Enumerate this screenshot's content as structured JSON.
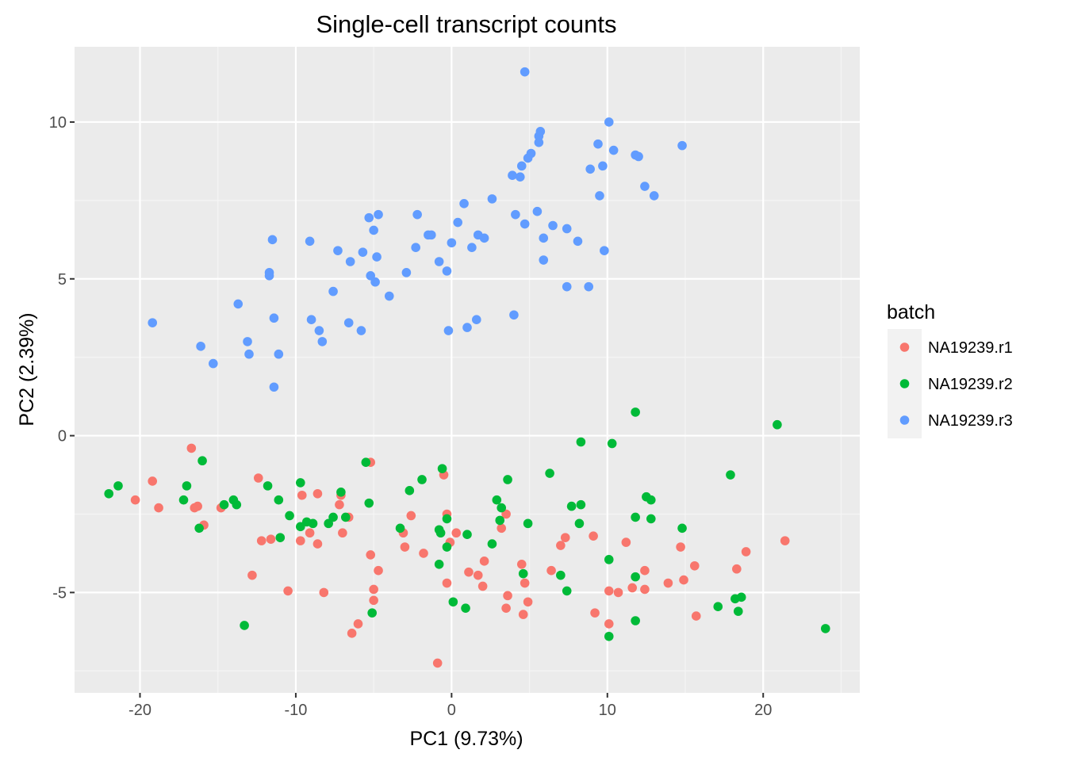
{
  "chart_data": {
    "type": "scatter",
    "title": "Single-cell transcript counts",
    "xlabel": "PC1 (9.73%)",
    "ylabel": "PC2 (2.39%)",
    "xlim": [
      -24.2,
      26.2
    ],
    "ylim": [
      -8.2,
      12.4
    ],
    "xticks": [
      -20,
      -10,
      0,
      10,
      20
    ],
    "xtick_labels": [
      "-20",
      "-10",
      "0",
      "10",
      "20"
    ],
    "yticks": [
      -5,
      0,
      5,
      10
    ],
    "ytick_labels": [
      "-5",
      "0",
      "5",
      "10"
    ],
    "grid": true,
    "background": "#EBEBEB",
    "legend": {
      "title": "batch",
      "position": "right"
    },
    "series": [
      {
        "name": "NA19239.r1",
        "color": "#F8766D",
        "points": [
          [
            -16.7,
            -0.4
          ],
          [
            -5.2,
            -0.85
          ],
          [
            -12.4,
            -1.35
          ],
          [
            -19.2,
            -1.45
          ],
          [
            -20.3,
            -2.05
          ],
          [
            -18.8,
            -2.3
          ],
          [
            -16.5,
            -2.3
          ],
          [
            -16.3,
            -2.25
          ],
          [
            -15.9,
            -2.85
          ],
          [
            -14.8,
            -2.3
          ],
          [
            -9.6,
            -1.9
          ],
          [
            -8.6,
            -1.85
          ],
          [
            -7.1,
            -1.9
          ],
          [
            -7.2,
            -2.2
          ],
          [
            -6.6,
            -2.6
          ],
          [
            -9.1,
            -3.1
          ],
          [
            -12.2,
            -3.35
          ],
          [
            -11.6,
            -3.3
          ],
          [
            -9.7,
            -3.35
          ],
          [
            -8.6,
            -3.45
          ],
          [
            -7.0,
            -3.1
          ],
          [
            -12.8,
            -4.45
          ],
          [
            -5.2,
            -3.8
          ],
          [
            -4.7,
            -4.3
          ],
          [
            -3.1,
            -3.1
          ],
          [
            -2.6,
            -2.55
          ],
          [
            -3.0,
            -3.55
          ],
          [
            -1.8,
            -3.75
          ],
          [
            -0.5,
            -1.25
          ],
          [
            -0.3,
            -2.5
          ],
          [
            -0.1,
            -3.4
          ],
          [
            0.3,
            -3.1
          ],
          [
            -0.3,
            -4.7
          ],
          [
            1.1,
            -4.35
          ],
          [
            1.7,
            -4.45
          ],
          [
            2.1,
            -4.0
          ],
          [
            3.5,
            -2.5
          ],
          [
            3.2,
            -2.95
          ],
          [
            2.0,
            -4.8
          ],
          [
            3.5,
            -5.5
          ],
          [
            3.6,
            -5.1
          ],
          [
            4.5,
            -4.1
          ],
          [
            4.7,
            -4.7
          ],
          [
            4.6,
            -5.7
          ],
          [
            4.9,
            -5.3
          ],
          [
            6.4,
            -4.3
          ],
          [
            7.0,
            -3.5
          ],
          [
            7.3,
            -3.25
          ],
          [
            9.1,
            -3.2
          ],
          [
            11.2,
            -3.4
          ],
          [
            11.6,
            -4.85
          ],
          [
            12.4,
            -4.3
          ],
          [
            12.4,
            -4.9
          ],
          [
            13.9,
            -4.7
          ],
          [
            14.7,
            -3.55
          ],
          [
            14.9,
            -4.6
          ],
          [
            15.6,
            -4.15
          ],
          [
            15.7,
            -5.75
          ],
          [
            18.3,
            -4.25
          ],
          [
            18.9,
            -3.7
          ],
          [
            21.4,
            -3.35
          ],
          [
            9.2,
            -5.65
          ],
          [
            10.1,
            -4.95
          ],
          [
            10.7,
            -5.0
          ],
          [
            10.1,
            -6.0
          ],
          [
            -10.5,
            -4.95
          ],
          [
            -8.2,
            -5.0
          ],
          [
            -5.0,
            -4.9
          ],
          [
            -5.0,
            -5.25
          ],
          [
            -6.0,
            -6.0
          ],
          [
            -6.4,
            -6.3
          ],
          [
            -0.9,
            -7.25
          ]
        ]
      },
      {
        "name": "NA19239.r2",
        "color": "#00BA38",
        "points": [
          [
            -22.0,
            -1.85
          ],
          [
            -21.4,
            -1.6
          ],
          [
            -17.0,
            -1.6
          ],
          [
            -17.2,
            -2.05
          ],
          [
            -16.0,
            -0.8
          ],
          [
            -16.2,
            -2.95
          ],
          [
            -14.6,
            -2.2
          ],
          [
            -14.0,
            -2.05
          ],
          [
            -13.8,
            -2.2
          ],
          [
            -13.3,
            -6.05
          ],
          [
            -11.8,
            -1.6
          ],
          [
            -11.1,
            -2.05
          ],
          [
            -10.4,
            -2.55
          ],
          [
            -11.0,
            -3.25
          ],
          [
            -9.7,
            -1.5
          ],
          [
            -9.7,
            -2.9
          ],
          [
            -9.3,
            -2.75
          ],
          [
            -8.9,
            -2.8
          ],
          [
            -7.9,
            -2.8
          ],
          [
            -7.6,
            -2.6
          ],
          [
            -7.1,
            -1.8
          ],
          [
            -6.8,
            -2.6
          ],
          [
            -5.5,
            -0.85
          ],
          [
            -5.3,
            -2.15
          ],
          [
            -5.1,
            -5.65
          ],
          [
            -3.3,
            -2.95
          ],
          [
            -2.7,
            -1.75
          ],
          [
            -1.9,
            -1.4
          ],
          [
            -0.6,
            -1.05
          ],
          [
            -0.8,
            -3.0
          ],
          [
            -0.7,
            -3.1
          ],
          [
            -0.3,
            -2.65
          ],
          [
            -0.3,
            -3.55
          ],
          [
            -0.8,
            -4.1
          ],
          [
            0.1,
            -5.3
          ],
          [
            0.9,
            -5.5
          ],
          [
            1.0,
            -3.15
          ],
          [
            2.6,
            -3.45
          ],
          [
            2.9,
            -2.05
          ],
          [
            3.1,
            -2.7
          ],
          [
            3.2,
            -2.3
          ],
          [
            3.6,
            -1.4
          ],
          [
            4.6,
            -4.4
          ],
          [
            4.9,
            -2.8
          ],
          [
            6.3,
            -1.2
          ],
          [
            7.0,
            -4.45
          ],
          [
            7.4,
            -4.95
          ],
          [
            7.7,
            -2.25
          ],
          [
            8.3,
            -0.2
          ],
          [
            8.3,
            -2.2
          ],
          [
            8.2,
            -2.8
          ],
          [
            10.1,
            -3.95
          ],
          [
            10.3,
            -0.25
          ],
          [
            10.1,
            -6.4
          ],
          [
            11.8,
            0.75
          ],
          [
            11.8,
            -2.6
          ],
          [
            11.8,
            -4.5
          ],
          [
            11.8,
            -5.9
          ],
          [
            12.5,
            -1.95
          ],
          [
            12.8,
            -2.05
          ],
          [
            12.8,
            -2.65
          ],
          [
            14.8,
            -2.95
          ],
          [
            17.1,
            -5.45
          ],
          [
            17.9,
            -1.25
          ],
          [
            18.2,
            -5.2
          ],
          [
            18.4,
            -5.6
          ],
          [
            18.6,
            -5.15
          ],
          [
            20.9,
            0.35
          ],
          [
            24.0,
            -6.15
          ]
        ]
      },
      {
        "name": "NA19239.r3",
        "color": "#619CFF",
        "points": [
          [
            4.7,
            11.6
          ],
          [
            10.1,
            10.0
          ],
          [
            5.7,
            9.7
          ],
          [
            5.6,
            9.55
          ],
          [
            9.4,
            9.3
          ],
          [
            5.6,
            9.35
          ],
          [
            14.8,
            9.25
          ],
          [
            10.4,
            9.1
          ],
          [
            11.8,
            8.95
          ],
          [
            12.0,
            8.9
          ],
          [
            5.1,
            9.0
          ],
          [
            4.9,
            8.85
          ],
          [
            4.5,
            8.6
          ],
          [
            9.7,
            8.6
          ],
          [
            8.9,
            8.5
          ],
          [
            3.9,
            8.3
          ],
          [
            4.4,
            8.25
          ],
          [
            12.4,
            7.95
          ],
          [
            13.0,
            7.65
          ],
          [
            9.5,
            7.65
          ],
          [
            2.6,
            7.55
          ],
          [
            0.8,
            7.4
          ],
          [
            5.5,
            7.15
          ],
          [
            -2.2,
            7.05
          ],
          [
            -4.7,
            7.05
          ],
          [
            -5.3,
            6.95
          ],
          [
            4.1,
            7.05
          ],
          [
            0.4,
            6.8
          ],
          [
            4.7,
            6.75
          ],
          [
            6.5,
            6.7
          ],
          [
            7.4,
            6.6
          ],
          [
            -5.0,
            6.55
          ],
          [
            -1.5,
            6.4
          ],
          [
            -1.3,
            6.4
          ],
          [
            1.7,
            6.4
          ],
          [
            5.9,
            6.3
          ],
          [
            2.1,
            6.3
          ],
          [
            8.1,
            6.2
          ],
          [
            0.0,
            6.15
          ],
          [
            -11.5,
            6.25
          ],
          [
            -9.1,
            6.2
          ],
          [
            -7.3,
            5.9
          ],
          [
            -5.7,
            5.85
          ],
          [
            -4.8,
            5.7
          ],
          [
            -2.3,
            6.0
          ],
          [
            1.3,
            6.0
          ],
          [
            9.8,
            5.9
          ],
          [
            -6.5,
            5.55
          ],
          [
            -0.8,
            5.55
          ],
          [
            -0.3,
            5.25
          ],
          [
            -2.9,
            5.2
          ],
          [
            5.9,
            5.6
          ],
          [
            -11.7,
            5.2
          ],
          [
            -11.7,
            5.1
          ],
          [
            -5.2,
            5.1
          ],
          [
            -4.9,
            4.9
          ],
          [
            7.4,
            4.75
          ],
          [
            8.8,
            4.75
          ],
          [
            -7.6,
            4.6
          ],
          [
            -4.0,
            4.45
          ],
          [
            -13.7,
            4.2
          ],
          [
            -19.2,
            3.6
          ],
          [
            -11.4,
            3.75
          ],
          [
            -9.0,
            3.7
          ],
          [
            -6.6,
            3.6
          ],
          [
            1.6,
            3.7
          ],
          [
            4.0,
            3.85
          ],
          [
            -8.5,
            3.35
          ],
          [
            -5.8,
            3.35
          ],
          [
            -0.2,
            3.35
          ],
          [
            1.0,
            3.45
          ],
          [
            -13.1,
            3.0
          ],
          [
            -8.3,
            3.0
          ],
          [
            -16.1,
            2.85
          ],
          [
            -13.0,
            2.6
          ],
          [
            -11.1,
            2.6
          ],
          [
            -15.3,
            2.3
          ],
          [
            -11.4,
            1.55
          ]
        ]
      }
    ]
  }
}
